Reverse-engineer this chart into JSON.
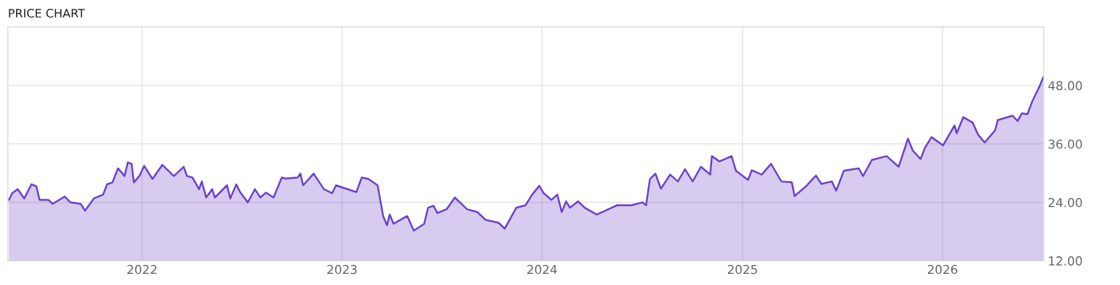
{
  "chart_data": {
    "type": "area",
    "title": "PRICE CHART",
    "x": [
      "2021-05-03",
      "2021-05-09",
      "2021-05-19",
      "2021-05-31",
      "2021-06-13",
      "2021-06-22",
      "2021-06-28",
      "2021-07-14",
      "2021-07-22",
      "2021-08-13",
      "2021-08-23",
      "2021-09-11",
      "2021-09-19",
      "2021-10-05",
      "2021-10-22",
      "2021-10-29",
      "2021-11-08",
      "2021-11-18",
      "2021-11-30",
      "2021-12-06",
      "2021-12-13",
      "2021-12-17",
      "2021-12-27",
      "2022-01-05",
      "2022-01-20",
      "2022-02-07",
      "2022-02-28",
      "2022-03-18",
      "2022-03-24",
      "2022-04-03",
      "2022-04-15",
      "2022-04-20",
      "2022-04-28",
      "2022-05-09",
      "2022-05-14",
      "2022-06-05",
      "2022-06-11",
      "2022-06-22",
      "2022-06-29",
      "2022-07-13",
      "2022-07-26",
      "2022-08-05",
      "2022-08-15",
      "2022-08-29",
      "2022-09-13",
      "2022-09-20",
      "2022-10-12",
      "2022-10-17",
      "2022-10-22",
      "2022-11-10",
      "2022-11-29",
      "2022-12-14",
      "2022-12-21",
      "2023-01-27",
      "2023-02-06",
      "2023-02-18",
      "2023-03-07",
      "2023-03-17",
      "2023-03-24",
      "2023-03-29",
      "2023-04-05",
      "2023-04-30",
      "2023-05-12",
      "2023-05-31",
      "2023-06-07",
      "2023-06-17",
      "2023-06-24",
      "2023-07-11",
      "2023-07-26",
      "2023-08-17",
      "2023-09-05",
      "2023-09-20",
      "2023-10-14",
      "2023-10-25",
      "2023-11-15",
      "2023-12-02",
      "2023-12-14",
      "2023-12-27",
      "2024-01-04",
      "2024-01-18",
      "2024-01-29",
      "2024-02-06",
      "2024-02-14",
      "2024-02-21",
      "2024-03-07",
      "2024-03-19",
      "2024-04-10",
      "2024-05-17",
      "2024-06-12",
      "2024-07-02",
      "2024-07-09",
      "2024-07-16",
      "2024-07-26",
      "2024-08-05",
      "2024-08-22",
      "2024-09-05",
      "2024-09-18",
      "2024-10-02",
      "2024-10-17",
      "2024-11-03",
      "2024-11-06",
      "2024-11-20",
      "2024-12-12",
      "2024-12-20",
      "2025-01-11",
      "2025-01-18",
      "2025-02-05",
      "2025-02-22",
      "2025-03-13",
      "2025-04-01",
      "2025-04-06",
      "2025-04-26",
      "2025-05-15",
      "2025-05-25",
      "2025-06-13",
      "2025-06-21",
      "2025-07-05",
      "2025-08-01",
      "2025-08-09",
      "2025-08-25",
      "2025-09-21",
      "2025-10-13",
      "2025-10-30",
      "2025-11-08",
      "2025-11-22",
      "2025-11-30",
      "2025-12-12",
      "2026-01-02",
      "2026-01-23",
      "2026-01-27",
      "2026-02-08",
      "2026-02-25",
      "2026-03-07",
      "2026-03-19",
      "2026-04-07",
      "2026-04-12",
      "2026-05-09",
      "2026-05-18",
      "2026-05-26",
      "2026-06-05",
      "2026-06-14",
      "2026-06-27",
      "2026-07-04"
    ],
    "series": [
      {
        "color": "#6a3fc8",
        "values": [
          24.5,
          25.9,
          26.7,
          24.8,
          27.7,
          27.3,
          24.5,
          24.5,
          23.7,
          25.2,
          24.0,
          23.7,
          22.3,
          24.8,
          25.6,
          27.7,
          28.1,
          31.0,
          29.4,
          32.2,
          31.9,
          28.1,
          29.4,
          31.5,
          28.8,
          31.7,
          29.4,
          31.3,
          29.4,
          29.1,
          26.7,
          28.3,
          25.0,
          26.7,
          25.0,
          27.5,
          24.8,
          27.7,
          26.1,
          24.0,
          26.7,
          25.0,
          26.0,
          25.0,
          29.1,
          28.9,
          29.1,
          29.9,
          27.5,
          29.9,
          26.7,
          25.9,
          27.5,
          26.1,
          29.1,
          28.8,
          27.5,
          21.2,
          19.3,
          21.5,
          19.6,
          21.2,
          18.2,
          19.6,
          22.9,
          23.3,
          21.8,
          22.6,
          25.0,
          22.6,
          22.0,
          20.4,
          19.8,
          18.6,
          22.9,
          23.4,
          25.6,
          27.4,
          25.9,
          24.5,
          25.6,
          22.0,
          24.2,
          22.9,
          24.2,
          22.9,
          21.5,
          23.4,
          23.4,
          24.0,
          23.4,
          28.8,
          29.9,
          26.8,
          29.7,
          28.3,
          30.8,
          28.3,
          31.3,
          29.7,
          33.5,
          32.4,
          33.5,
          30.5,
          28.6,
          30.6,
          29.7,
          31.9,
          28.3,
          28.1,
          25.3,
          27.2,
          29.5,
          27.8,
          28.3,
          26.4,
          30.5,
          31.0,
          29.4,
          32.7,
          33.5,
          31.3,
          37.1,
          34.6,
          32.9,
          35.2,
          37.4,
          35.7,
          39.8,
          38.2,
          41.5,
          40.4,
          37.9,
          36.3,
          38.8,
          40.9,
          41.8,
          40.7,
          42.3,
          42.1,
          44.8,
          47.8,
          49.7
        ]
      }
    ],
    "xlim": [
      "2021-05-01",
      "2026-07-05"
    ],
    "xticks": [
      {
        "value": "2022-01-01",
        "label": "2022"
      },
      {
        "value": "2023-01-01",
        "label": "2023"
      },
      {
        "value": "2024-01-01",
        "label": "2024"
      },
      {
        "value": "2025-01-01",
        "label": "2025"
      },
      {
        "value": "2026-01-01",
        "label": "2026"
      }
    ],
    "ylim": [
      12,
      60
    ],
    "yticks": [
      {
        "value": 12,
        "label": "12.00"
      },
      {
        "value": 24,
        "label": "24.00"
      },
      {
        "value": 36,
        "label": "36.00"
      },
      {
        "value": 48,
        "label": "48.00"
      }
    ],
    "grid": true
  }
}
